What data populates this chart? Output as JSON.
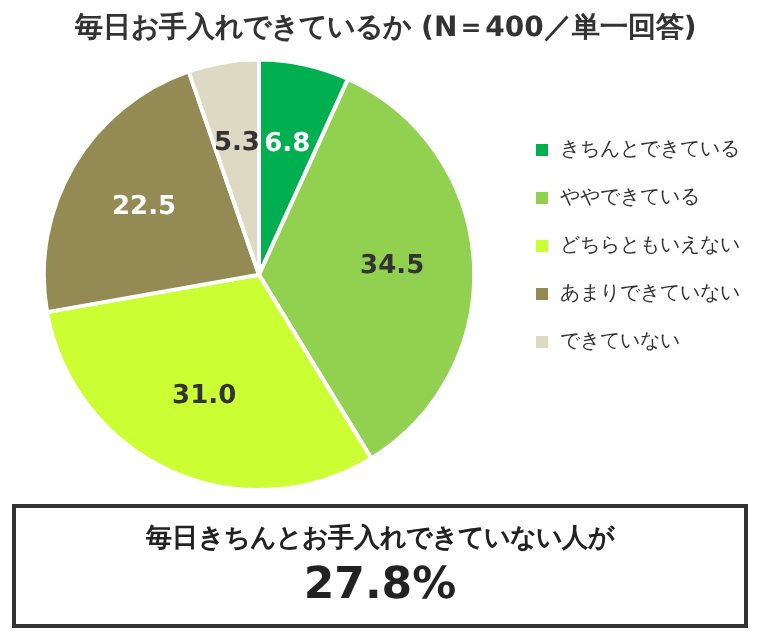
{
  "chart_data": {
    "type": "pie",
    "title": "毎日お手入れできているか (N＝400／単一回答)",
    "categories": [
      "きちんとできている",
      "ややできている",
      "どちらともいえない",
      "あまりできていない",
      "できていない"
    ],
    "values": [
      6.8,
      34.5,
      31.0,
      22.5,
      5.3
    ],
    "value_labels": [
      "6.8",
      "34.5",
      "31.0",
      "22.5",
      "5.3"
    ],
    "colors": [
      "#00b050",
      "#92d050",
      "#ccff33",
      "#948a54",
      "#ddd9c3"
    ],
    "legend": "right",
    "annotations": [
      "毎日きちんとお手入れできていない人が",
      "27.8%"
    ]
  }
}
